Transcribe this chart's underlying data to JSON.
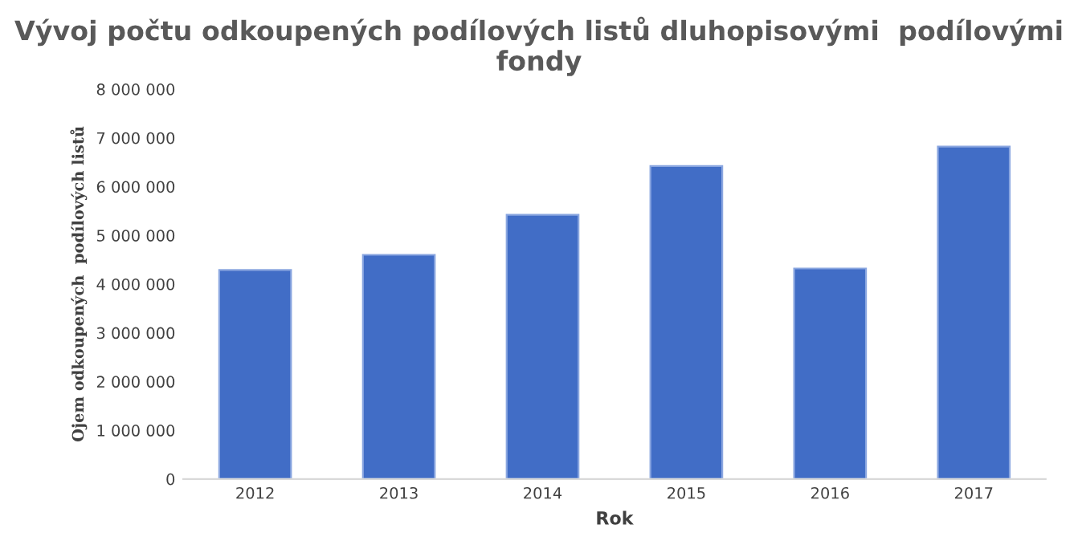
{
  "chart_data": {
    "type": "bar",
    "title": "Vývoj počtu odkoupených podílových listů dluhopisovými  podílovými fondy",
    "xlabel": "Rok",
    "ylabel": "Ojem odkoupených  podílových listů",
    "categories": [
      "2012",
      "2013",
      "2014",
      "2015",
      "2016",
      "2017"
    ],
    "values": [
      4290000,
      4600000,
      5420000,
      6420000,
      4320000,
      6820000
    ],
    "color": "#416dc6",
    "ylim": [
      0,
      8000000
    ],
    "yticks": [
      0,
      {
        "value": 1000000,
        "label": "1 000 000"
      },
      {
        "value": 2000000,
        "label": "2 000 000"
      },
      {
        "value": 3000000,
        "label": "3 000 000"
      },
      {
        "value": 4000000,
        "label": "4 000 000"
      },
      {
        "value": 5000000,
        "label": "5 000 000"
      },
      {
        "value": 6000000,
        "label": "6 000 000"
      },
      {
        "value": 7000000,
        "label": "7 000 000"
      },
      {
        "value": 8000000,
        "label": "8 000 000"
      }
    ],
    "grid": false
  }
}
